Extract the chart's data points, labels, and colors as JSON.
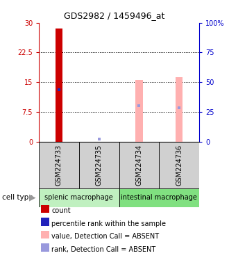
{
  "title": "GDS2982 / 1459496_at",
  "samples": [
    "GSM224733",
    "GSM224735",
    "GSM224734",
    "GSM224736"
  ],
  "bar_data": {
    "GSM224733": {
      "red_value": 28.5,
      "blue_value": 13.0,
      "pink_value": null,
      "light_blue_value": null
    },
    "GSM224735": {
      "red_value": null,
      "blue_value": null,
      "pink_value": null,
      "light_blue_value": 0.7
    },
    "GSM224734": {
      "red_value": null,
      "blue_value": null,
      "pink_value": 15.5,
      "light_blue_value": 9.0
    },
    "GSM224736": {
      "red_value": null,
      "blue_value": null,
      "pink_value": 16.2,
      "light_blue_value": 8.5
    }
  },
  "ylim_left": [
    0,
    30
  ],
  "ylim_right": [
    0,
    100
  ],
  "yticks_left": [
    0,
    7.5,
    15,
    22.5,
    30
  ],
  "ytick_labels_left": [
    "0",
    "7.5",
    "15",
    "22.5",
    "30"
  ],
  "ytick_labels_right": [
    "0",
    "25",
    "50",
    "75",
    "100%"
  ],
  "left_axis_color": "#cc0000",
  "right_axis_color": "#0000cc",
  "red_bar_color": "#cc0000",
  "blue_marker_color": "#2222bb",
  "pink_bar_color": "#ffb0b0",
  "light_blue_marker_color": "#9999dd",
  "splenic_color": "#c0f0c0",
  "intestinal_color": "#80e080",
  "gray_box_color": "#d0d0d0",
  "label_count": "count",
  "label_percentile": "percentile rank within the sample",
  "label_pink": "value, Detection Call = ABSENT",
  "label_lightblue": "rank, Detection Call = ABSENT",
  "bar_width": 0.18,
  "marker_size": 3.5,
  "dotted_lines": [
    7.5,
    15,
    22.5
  ],
  "title_fontsize": 9,
  "tick_fontsize": 7,
  "sample_label_fontsize": 7,
  "cell_type_fontsize": 7,
  "legend_fontsize": 7
}
